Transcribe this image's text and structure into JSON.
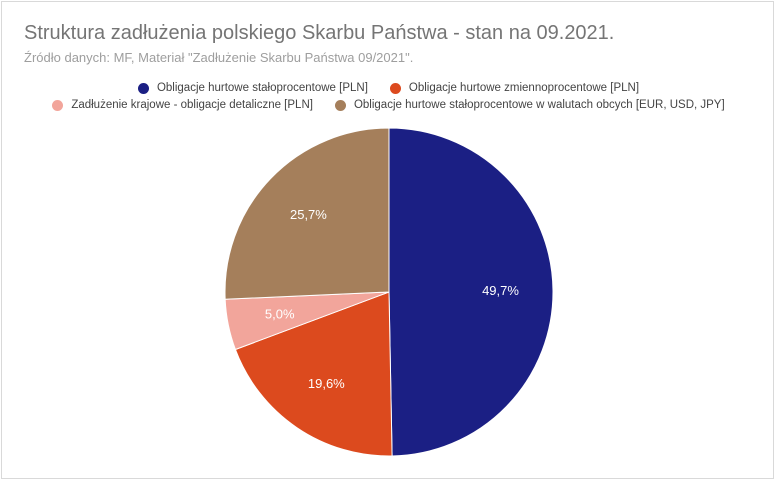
{
  "chart_data": {
    "type": "pie",
    "title": "Struktura zadłużenia polskiego Skarbu Państwa - stan na 09.2021.",
    "subtitle": "Źródło danych: MF, Materiał \"Zadłużenie Skarbu Państwa 09/2021\".",
    "legend_position": "top",
    "slices": [
      {
        "label": "Obligacje hurtowe stałoprocentowe [PLN]",
        "value": 49.7,
        "display": "49,7%",
        "color": "#1b1f84"
      },
      {
        "label": "Obligacje hurtowe zmiennoprocentowe [PLN]",
        "value": 19.6,
        "display": "19,6%",
        "color": "#dc4a1e"
      },
      {
        "label": "Zadłużenie krajowe - obligacje detaliczne [PLN]",
        "value": 5.0,
        "display": "5,0%",
        "color": "#f2a59b"
      },
      {
        "label": "Obligacje hurtowe stałoprocentowe w walutach obcych [EUR, USD, JPY]",
        "value": 25.7,
        "display": "25,7%",
        "color": "#a57f5b"
      }
    ]
  }
}
